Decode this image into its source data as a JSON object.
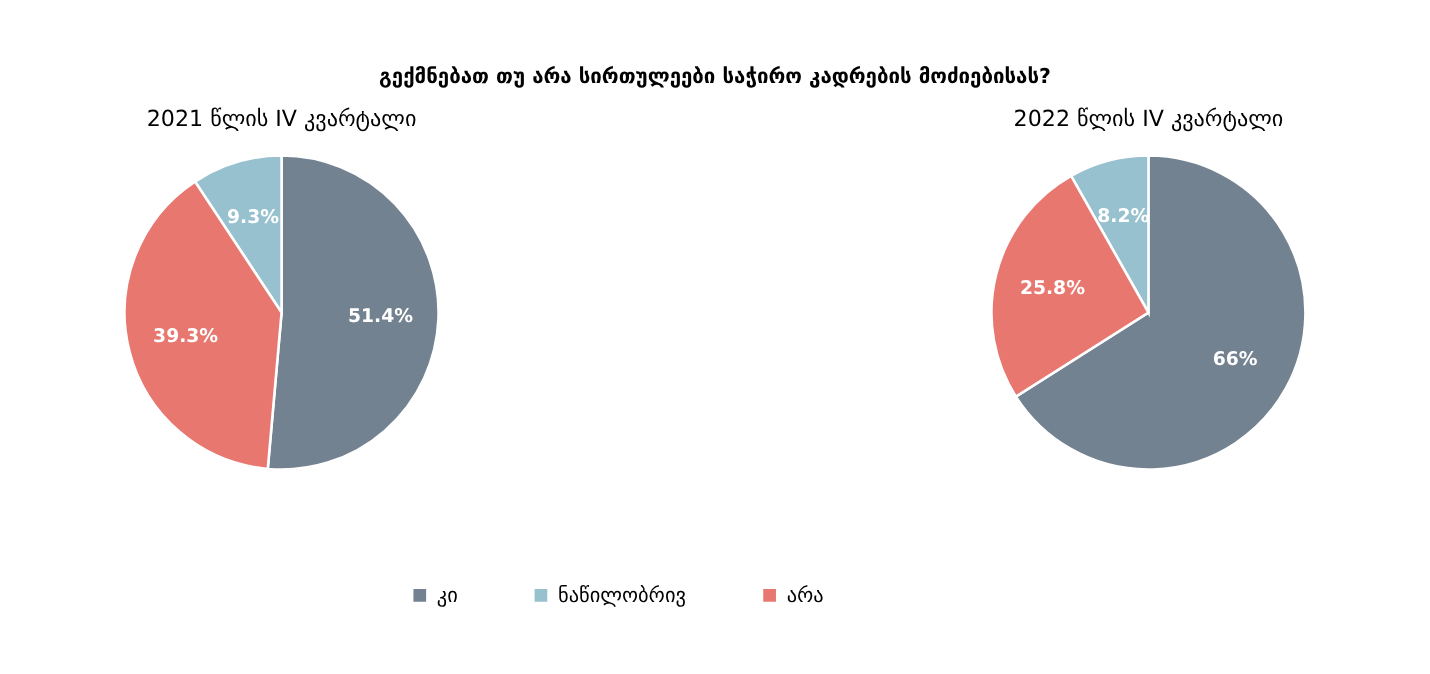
{
  "chart_data": [
    {
      "type": "pie",
      "title": "გექმნებათ თუ არა სირთულეები საჭირო კადრების მოძიებისას?",
      "subtitle": "2021 წლის IV კვარტალი",
      "categories": [
        "კი",
        "ნაწილობრივ",
        "არა"
      ],
      "values": [
        51.4,
        9.3,
        39.3
      ],
      "colors": [
        "#738290",
        "#97c1cf",
        "#e8776f"
      ],
      "value_labels": [
        "51.4%",
        "9.3%",
        "39.3%"
      ],
      "legend": "bottom"
    },
    {
      "type": "pie",
      "subtitle": "2022 წლის IV კვარტალი",
      "categories": [
        null,
        null,
        null
      ],
      "values": [
        66,
        8.2,
        25.8
      ],
      "colors": [
        "#738290",
        "#97c1cf",
        "#e8776f"
      ],
      "value_labels": [
        "66%",
        "8.2%",
        "25.8%"
      ]
    }
  ]
}
